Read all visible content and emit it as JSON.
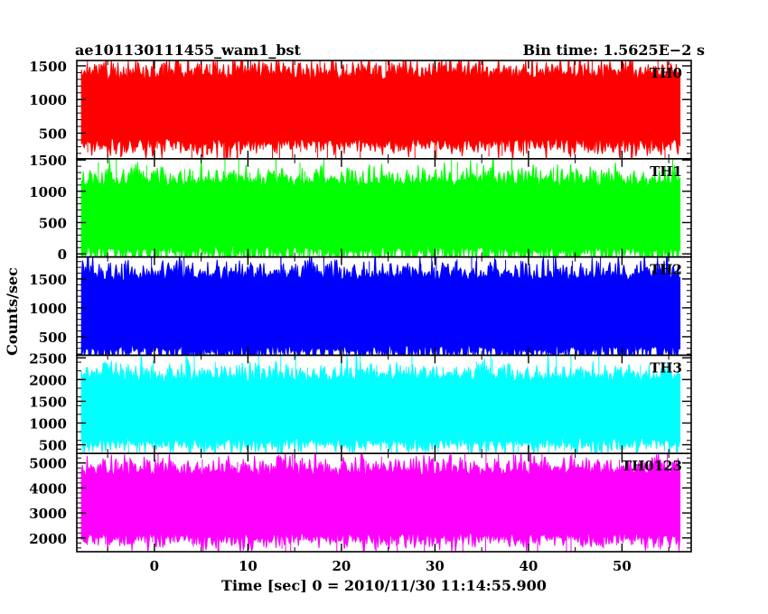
{
  "chart_data": {
    "type": "line",
    "title_left": "ae101130111455_wam1_bst",
    "title_right": "Bin time: 1.5625E−2 s",
    "xlabel": "Time [sec] 0 = 2010/11/30 11:14:55.900",
    "ylabel": "Counts/sec",
    "xlim": [
      -8.3,
      57.4
    ],
    "data_x_range": [
      -7.8,
      56.2
    ],
    "x_ticks": [
      {
        "value": 0,
        "label": "0"
      },
      {
        "value": 10,
        "label": "10"
      },
      {
        "value": 20,
        "label": "20"
      },
      {
        "value": 30,
        "label": "30"
      },
      {
        "value": 40,
        "label": "40"
      },
      {
        "value": 50,
        "label": "50"
      }
    ],
    "grid": false,
    "panels": [
      {
        "series_name": "TH0",
        "color": "#ff0000",
        "ylim": [
          120,
          1580
        ],
        "mean": 850,
        "low_env": 420,
        "high_env": 1300,
        "y_ticks": [
          {
            "value": 500,
            "label": "500"
          },
          {
            "value": 1000,
            "label": "1000"
          },
          {
            "value": 1500,
            "label": "1500"
          }
        ]
      },
      {
        "series_name": "TH1",
        "color": "#00ff00",
        "ylim": [
          -50,
          1520
        ],
        "mean": 560,
        "low_env": 120,
        "high_env": 1080,
        "y_ticks": [
          {
            "value": 0,
            "label": "0"
          },
          {
            "value": 500,
            "label": "500"
          },
          {
            "value": 1000,
            "label": "1000"
          },
          {
            "value": 1500,
            "label": "1500"
          }
        ]
      },
      {
        "series_name": "TH2",
        "color": "#0000ff",
        "ylim": [
          180,
          1880
        ],
        "mean": 920,
        "low_env": 350,
        "high_env": 1470,
        "y_ticks": [
          {
            "value": 500,
            "label": "500"
          },
          {
            "value": 1000,
            "label": "1000"
          },
          {
            "value": 1500,
            "label": "1500"
          }
        ]
      },
      {
        "series_name": "TH3",
        "color": "#00ffff",
        "ylim": [
          300,
          2560
        ],
        "mean": 1300,
        "low_env": 650,
        "high_env": 1950,
        "y_ticks": [
          {
            "value": 500,
            "label": "500"
          },
          {
            "value": 1000,
            "label": "1000"
          },
          {
            "value": 1500,
            "label": "1500"
          },
          {
            "value": 2000,
            "label": "2000"
          },
          {
            "value": 2500,
            "label": "2500"
          }
        ]
      },
      {
        "series_name": "TH0123",
        "color": "#ff00ff",
        "ylim": [
          1450,
          5380
        ],
        "mean": 3400,
        "low_env": 2200,
        "high_env": 4500,
        "y_ticks": [
          {
            "value": 2000,
            "label": "2000"
          },
          {
            "value": 3000,
            "label": "3000"
          },
          {
            "value": 4000,
            "label": "4000"
          },
          {
            "value": 5000,
            "label": "5000"
          }
        ]
      }
    ]
  }
}
